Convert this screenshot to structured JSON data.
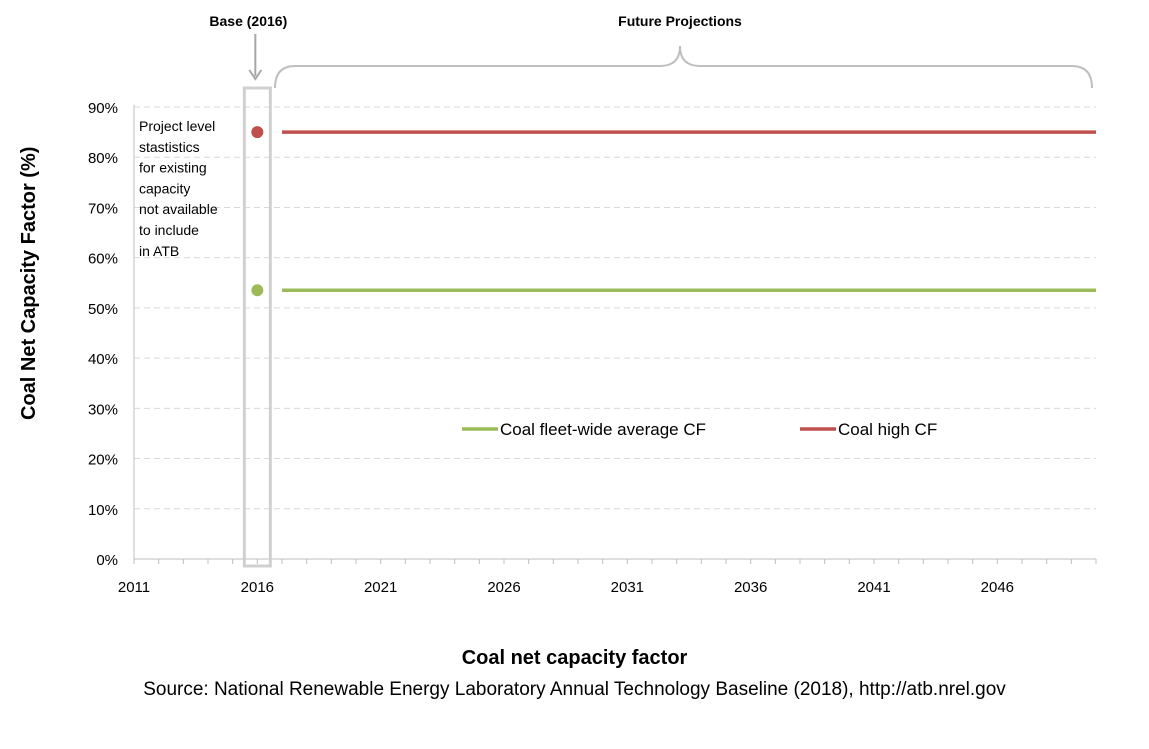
{
  "chart_data": {
    "type": "line",
    "title": "",
    "xlabel": "Coal net capacity factor",
    "ylabel": "Coal Net Capacity Factor (%)",
    "xlim": [
      2011,
      2050
    ],
    "ylim": [
      0,
      90
    ],
    "x_ticks": [
      "2011",
      "2016",
      "2021",
      "2026",
      "2031",
      "2036",
      "2041",
      "2046"
    ],
    "y_ticks": [
      "0%",
      "10%",
      "20%",
      "30%",
      "40%",
      "50%",
      "60%",
      "70%",
      "80%",
      "90%"
    ],
    "grid": "horizontal dashed",
    "legend_position": "center-bottom",
    "series": [
      {
        "name": "Coal fleet-wide average CF",
        "color": "#9BBB59",
        "base": {
          "x": 2016,
          "y": 53.5
        },
        "x": [
          2017,
          2050
        ],
        "y": [
          53.5,
          53.5
        ]
      },
      {
        "name": "Coal high CF",
        "color": "#C0504D",
        "base": {
          "x": 2016,
          "y": 85
        },
        "x": [
          2017,
          2050
        ],
        "y": [
          85,
          85
        ]
      }
    ],
    "annotations": {
      "base_label": "Base (2016)",
      "future_label": "Future Projections",
      "note_lines": [
        "Project level",
        "stastistics",
        "for existing",
        "capacity",
        "not available",
        "to include",
        "in ATB"
      ]
    }
  },
  "source": "Source: National Renewable Energy Laboratory Annual Technology Baseline (2018), http://atb.nrel.gov"
}
